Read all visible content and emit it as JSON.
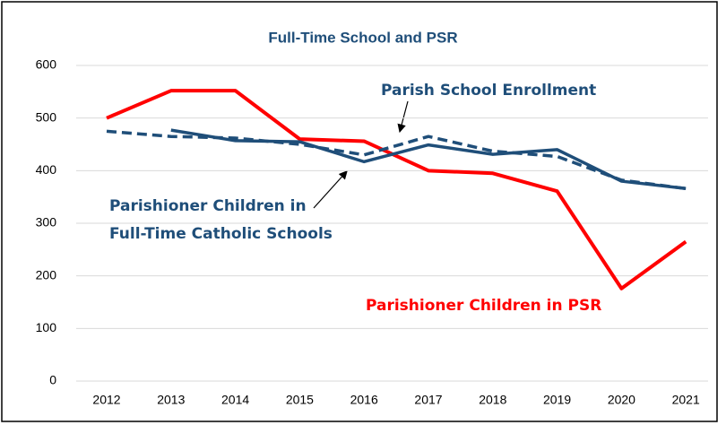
{
  "chart_data": {
    "type": "line",
    "title": "Full-Time School and PSR",
    "categories": [
      "2012",
      "2013",
      "2014",
      "2015",
      "2016",
      "2017",
      "2018",
      "2019",
      "2020",
      "2021"
    ],
    "series": [
      {
        "name": "Parishioner Children in PSR",
        "color": "#ff0000",
        "dashed": false,
        "values": [
          500,
          552,
          552,
          460,
          456,
          400,
          395,
          361,
          176,
          265
        ]
      },
      {
        "name": "Parishioner Children in Full-Time Catholic Schools",
        "color": "#1f4e79",
        "dashed": false,
        "values": [
          null,
          477,
          457,
          455,
          417,
          449,
          431,
          440,
          380,
          366
        ]
      },
      {
        "name": "Parish School Enrollment",
        "color": "#1f4e79",
        "dashed": true,
        "values": [
          475,
          465,
          462,
          450,
          430,
          465,
          437,
          427,
          382,
          366
        ]
      }
    ],
    "ylim": [
      0,
      600
    ],
    "yticks": [
      0,
      100,
      200,
      300,
      400,
      500,
      600
    ],
    "grid": true
  }
}
